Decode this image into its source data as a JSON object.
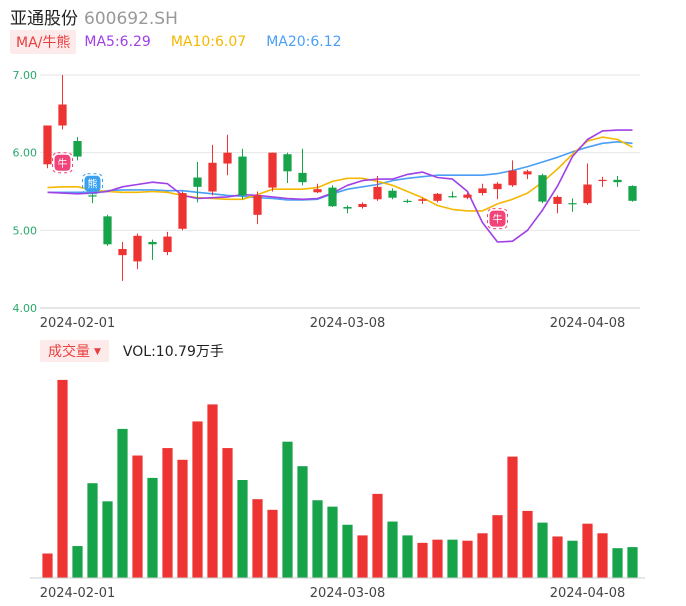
{
  "header": {
    "name": "亚通股份",
    "code": "600692.SH"
  },
  "indicator": {
    "button_label": "MA/牛熊",
    "ma5": {
      "label": "MA5:6.29",
      "color": "#a040e6"
    },
    "ma10": {
      "label": "MA10:6.07",
      "color": "#f5b800"
    },
    "ma20": {
      "label": "MA20:6.12",
      "color": "#4a9ff5"
    }
  },
  "volume_bar": {
    "button_label": "成交量",
    "vol_label": "VOL:10.79万手"
  },
  "badges": {
    "bull": "牛",
    "bear": "熊"
  },
  "colors": {
    "up": "#ee3333",
    "down": "#16a34a",
    "grid": "#e6e6e6",
    "axis_text": "#2aa86a"
  },
  "chart_data": [
    {
      "type": "candlestick",
      "y_ticks": [
        "7.00",
        "6.00",
        "5.00",
        "4.00"
      ],
      "ylim": [
        4.0,
        7.0
      ],
      "x_ticks": [
        "2024-02-01",
        "2024-03-08",
        "2024-04-08"
      ],
      "candles": [
        {
          "o": 5.85,
          "c": 6.35,
          "h": 6.35,
          "l": 5.8
        },
        {
          "o": 6.35,
          "c": 6.62,
          "h": 7.0,
          "l": 6.3
        },
        {
          "o": 6.15,
          "c": 5.95,
          "h": 6.2,
          "l": 5.9
        },
        {
          "o": 5.45,
          "c": 5.44,
          "h": 5.48,
          "l": 5.35
        },
        {
          "o": 5.18,
          "c": 4.82,
          "h": 5.2,
          "l": 4.8
        },
        {
          "o": 4.68,
          "c": 4.76,
          "h": 4.85,
          "l": 4.35
        },
        {
          "o": 4.6,
          "c": 4.93,
          "h": 4.96,
          "l": 4.5
        },
        {
          "o": 4.85,
          "c": 4.82,
          "h": 4.88,
          "l": 4.62
        },
        {
          "o": 4.72,
          "c": 4.92,
          "h": 4.98,
          "l": 4.68
        },
        {
          "o": 5.02,
          "c": 5.48,
          "h": 5.5,
          "l": 5.0
        },
        {
          "o": 5.68,
          "c": 5.56,
          "h": 5.88,
          "l": 5.36
        },
        {
          "o": 5.5,
          "c": 5.87,
          "h": 6.1,
          "l": 5.45
        },
        {
          "o": 5.86,
          "c": 6.0,
          "h": 6.23,
          "l": 5.71
        },
        {
          "o": 5.95,
          "c": 5.45,
          "h": 6.05,
          "l": 5.4
        },
        {
          "o": 5.2,
          "c": 5.45,
          "h": 5.5,
          "l": 5.08
        },
        {
          "o": 5.55,
          "c": 6.0,
          "h": 6.0,
          "l": 5.5
        },
        {
          "o": 5.98,
          "c": 5.76,
          "h": 6.0,
          "l": 5.61
        },
        {
          "o": 5.74,
          "c": 5.62,
          "h": 6.05,
          "l": 5.58
        },
        {
          "o": 5.49,
          "c": 5.53,
          "h": 5.6,
          "l": 5.48
        },
        {
          "o": 5.55,
          "c": 5.31,
          "h": 5.58,
          "l": 5.3
        },
        {
          "o": 5.3,
          "c": 5.28,
          "h": 5.32,
          "l": 5.22
        },
        {
          "o": 5.3,
          "c": 5.34,
          "h": 5.36,
          "l": 5.28
        },
        {
          "o": 5.4,
          "c": 5.56,
          "h": 5.7,
          "l": 5.38
        },
        {
          "o": 5.51,
          "c": 5.42,
          "h": 5.54,
          "l": 5.4
        },
        {
          "o": 5.38,
          "c": 5.37,
          "h": 5.4,
          "l": 5.35
        },
        {
          "o": 5.38,
          "c": 5.4,
          "h": 5.42,
          "l": 5.34
        },
        {
          "o": 5.38,
          "c": 5.47,
          "h": 5.48,
          "l": 5.36
        },
        {
          "o": 5.44,
          "c": 5.43,
          "h": 5.5,
          "l": 5.42
        },
        {
          "o": 5.42,
          "c": 5.46,
          "h": 5.48,
          "l": 5.4
        },
        {
          "o": 5.48,
          "c": 5.54,
          "h": 5.6,
          "l": 5.45
        },
        {
          "o": 5.53,
          "c": 5.6,
          "h": 5.62,
          "l": 5.4
        },
        {
          "o": 5.58,
          "c": 5.77,
          "h": 5.9,
          "l": 5.56
        },
        {
          "o": 5.72,
          "c": 5.76,
          "h": 5.78,
          "l": 5.66
        },
        {
          "o": 5.71,
          "c": 5.37,
          "h": 5.73,
          "l": 5.35
        },
        {
          "o": 5.34,
          "c": 5.43,
          "h": 5.45,
          "l": 5.22
        },
        {
          "o": 5.35,
          "c": 5.34,
          "h": 5.41,
          "l": 5.24
        },
        {
          "o": 5.35,
          "c": 5.59,
          "h": 5.86,
          "l": 5.33
        },
        {
          "o": 5.64,
          "c": 5.65,
          "h": 5.69,
          "l": 5.56
        },
        {
          "o": 5.65,
          "c": 5.62,
          "h": 5.7,
          "l": 5.56
        },
        {
          "o": 5.57,
          "c": 5.38,
          "h": 5.58,
          "l": 5.37
        }
      ],
      "ma5": [
        5.49,
        5.48,
        5.47,
        5.48,
        5.5,
        5.56,
        5.59,
        5.62,
        5.6,
        5.45,
        5.41,
        5.42,
        5.43,
        5.46,
        5.45,
        5.43,
        5.41,
        5.4,
        5.41,
        5.48,
        5.58,
        5.64,
        5.66,
        5.66,
        5.72,
        5.75,
        5.68,
        5.66,
        5.5,
        5.1,
        4.85,
        4.86,
        5.0,
        5.26,
        5.57,
        5.95,
        6.17,
        6.28,
        6.29,
        6.29
      ],
      "ma10": [
        5.55,
        5.56,
        5.56,
        5.52,
        5.5,
        5.49,
        5.49,
        5.5,
        5.49,
        5.45,
        5.42,
        5.41,
        5.4,
        5.4,
        5.46,
        5.53,
        5.53,
        5.53,
        5.55,
        5.63,
        5.67,
        5.67,
        5.63,
        5.58,
        5.5,
        5.42,
        5.32,
        5.27,
        5.25,
        5.25,
        5.34,
        5.4,
        5.48,
        5.62,
        5.79,
        5.98,
        6.15,
        6.2,
        6.17,
        6.07
      ],
      "ma20": [
        5.49,
        5.49,
        5.49,
        5.49,
        5.51,
        5.52,
        5.52,
        5.52,
        5.51,
        5.51,
        5.49,
        5.47,
        5.45,
        5.44,
        5.42,
        5.41,
        5.39,
        5.39,
        5.4,
        5.47,
        5.53,
        5.56,
        5.59,
        5.64,
        5.67,
        5.69,
        5.71,
        5.71,
        5.71,
        5.71,
        5.73,
        5.77,
        5.82,
        5.88,
        5.94,
        6.01,
        6.07,
        6.12,
        6.14,
        6.12
      ],
      "markers": [
        {
          "kind": "bull",
          "index": 1,
          "price": 5.87
        },
        {
          "kind": "bear",
          "index": 3,
          "price": 5.6
        },
        {
          "kind": "bull",
          "index": 30,
          "price": 5.15
        }
      ]
    },
    {
      "type": "bar",
      "name": "volume",
      "x_ticks": [
        "2024-02-01",
        "2024-03-08",
        "2024-04-08"
      ],
      "values": [
        23,
        186,
        30,
        89,
        72,
        140,
        115,
        94,
        122,
        111,
        147,
        163,
        122,
        92,
        74,
        64,
        128,
        105,
        73,
        67,
        50,
        40,
        79,
        53,
        40,
        33,
        36,
        36,
        35,
        42,
        59,
        114,
        63,
        52,
        39,
        35,
        51,
        42,
        28,
        29
      ],
      "up": [
        true,
        true,
        false,
        false,
        false,
        false,
        true,
        false,
        true,
        true,
        true,
        true,
        true,
        false,
        true,
        true,
        false,
        false,
        false,
        false,
        false,
        true,
        true,
        false,
        false,
        true,
        true,
        false,
        true,
        true,
        true,
        true,
        true,
        false,
        true,
        false,
        true,
        true,
        false,
        false
      ]
    }
  ]
}
